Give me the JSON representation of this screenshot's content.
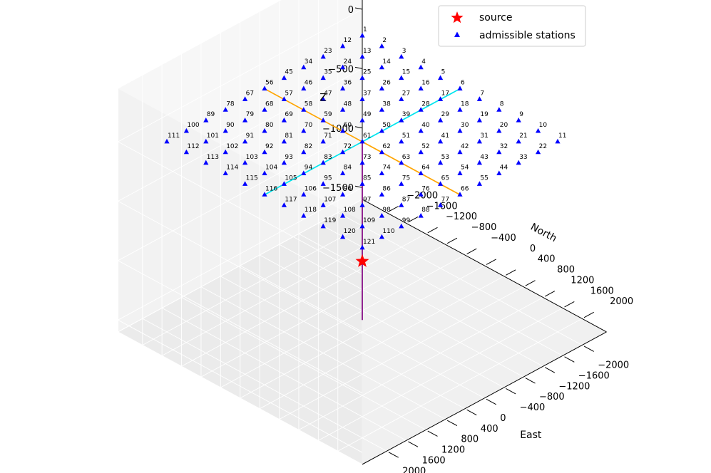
{
  "chart_data": {
    "type": "scatter",
    "dimensions": 3,
    "axes": {
      "x": {
        "label": "East",
        "range": [
          -2000,
          2000
        ],
        "ticks": [
          -2000,
          -1600,
          -1200,
          -800,
          -400,
          0,
          400,
          800,
          1200,
          1600,
          2000
        ],
        "tick_labels": [
          "−2000",
          "−1600",
          "−1200",
          "−800",
          "−400",
          "0",
          "400",
          "800",
          "1200",
          "1600",
          "2000"
        ]
      },
      "y": {
        "label": "North",
        "range": [
          -2000,
          2000
        ],
        "ticks": [
          -2000,
          -1600,
          -1200,
          -800,
          -400,
          0,
          400,
          800,
          1200,
          1600,
          2000
        ],
        "tick_labels": [
          "−2000",
          "−1600",
          "−1200",
          "−800",
          "−400",
          "0",
          "400",
          "800",
          "1200",
          "1600",
          "2000"
        ]
      },
      "z": {
        "label": "Z",
        "range": [
          -1500,
          0
        ],
        "ticks": [
          0,
          -500,
          -1000,
          -1500
        ],
        "tick_labels": [
          "0",
          "−500",
          "−1000",
          "−1500"
        ]
      }
    },
    "grid": true,
    "legend": {
      "placement": "top-right",
      "entries": [
        {
          "label": "source",
          "marker": "star",
          "color": "#ff0000"
        },
        {
          "label": "admissible stations",
          "marker": "triangle",
          "color": "#0000ff"
        }
      ]
    },
    "series": [
      {
        "name": "admissible stations",
        "marker": "triangle",
        "color": "#0000ff",
        "grid_points": {
          "east": [
            -2000,
            -1600,
            -1200,
            -800,
            -400,
            0,
            400,
            800,
            1200,
            1600,
            2000
          ],
          "north": [
            -2000,
            -1600,
            -1200,
            -800,
            -400,
            0,
            400,
            800,
            1200,
            1600,
            2000
          ],
          "z": 0
        },
        "labels": [
          "1",
          "2",
          "3",
          "4",
          "5",
          "6",
          "7",
          "8",
          "9",
          "10",
          "11",
          "12",
          "13",
          "14",
          "15",
          "16",
          "17",
          "18",
          "19",
          "20",
          "21",
          "22",
          "23",
          "24",
          "25",
          "26",
          "27",
          "28",
          "29",
          "30",
          "31",
          "32",
          "33",
          "34",
          "35",
          "36",
          "37",
          "38",
          "39",
          "40",
          "41",
          "42",
          "43",
          "44",
          "45",
          "46",
          "47",
          "48",
          "49",
          "50",
          "51",
          "52",
          "53",
          "54",
          "55",
          "56",
          "57",
          "58",
          "59",
          "60",
          "61",
          "62",
          "63",
          "64",
          "65",
          "66",
          "67",
          "68",
          "69",
          "70",
          "71",
          "72",
          "73",
          "74",
          "75",
          "76",
          "77",
          "78",
          "79",
          "80",
          "81",
          "82",
          "83",
          "84",
          "85",
          "86",
          "87",
          "88",
          "89",
          "90",
          "91",
          "92",
          "93",
          "94",
          "95",
          "96",
          "97",
          "98",
          "99",
          "100",
          "101",
          "102",
          "103",
          "104",
          "105",
          "106",
          "107",
          "108",
          "109",
          "110",
          "111",
          "112",
          "113",
          "114",
          "115",
          "116",
          "117",
          "118",
          "119",
          "120",
          "121"
        ]
      },
      {
        "name": "source",
        "marker": "star",
        "color": "#ff0000",
        "points": [
          {
            "east": 0,
            "north": 0,
            "z": -1000
          }
        ]
      }
    ],
    "lines": [
      {
        "color": "#ffa500",
        "from": {
          "east": -2000,
          "north": 0,
          "z": 0
        },
        "to": {
          "east": 2000,
          "north": 0,
          "z": 0
        }
      },
      {
        "color": "#00e5ee",
        "from": {
          "east": 0,
          "north": -2000,
          "z": 0
        },
        "to": {
          "east": 0,
          "north": 2000,
          "z": 0
        }
      },
      {
        "color": "#800080",
        "from": {
          "east": 0,
          "north": 0,
          "z": 0
        },
        "to": {
          "east": 0,
          "north": 0,
          "z": -1500
        }
      }
    ]
  }
}
